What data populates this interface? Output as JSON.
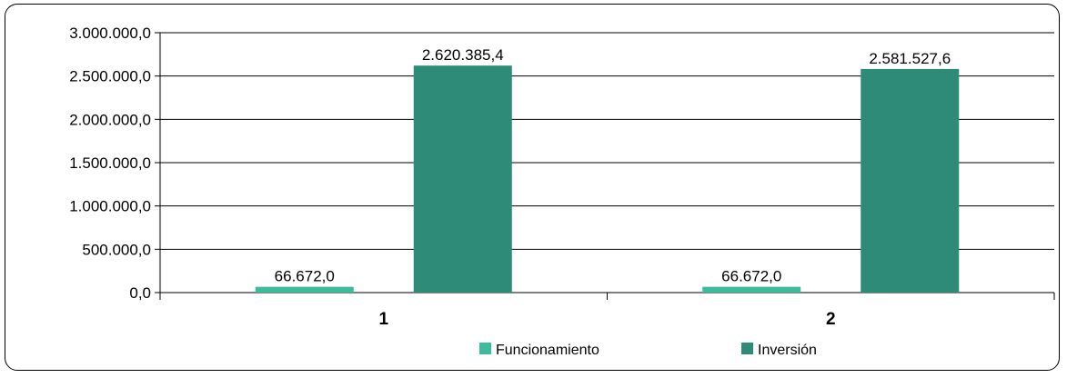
{
  "chart_data": {
    "type": "bar",
    "categories": [
      "1",
      "2"
    ],
    "series": [
      {
        "name": "Funcionamiento",
        "values": [
          66672.0,
          66672.0
        ],
        "labels": [
          "66.672,0",
          "66.672,0"
        ],
        "color": "#3dbb9c"
      },
      {
        "name": "Inversión",
        "values": [
          2620385.4,
          2581527.6
        ],
        "labels": [
          "2.620.385,4",
          "2.581.527,6"
        ],
        "color": "#2e8b78"
      }
    ],
    "ylim": [
      0,
      3000000
    ],
    "yticks": [
      0,
      500000,
      1000000,
      1500000,
      2000000,
      2500000,
      3000000
    ],
    "ytick_labels": [
      "0,0",
      "500.000,0",
      "1.000.000,0",
      "1.500.000,0",
      "2.000.000,0",
      "2.500.000,0",
      "3.000.000,0"
    ],
    "grid": true,
    "legend_position": "bottom"
  }
}
